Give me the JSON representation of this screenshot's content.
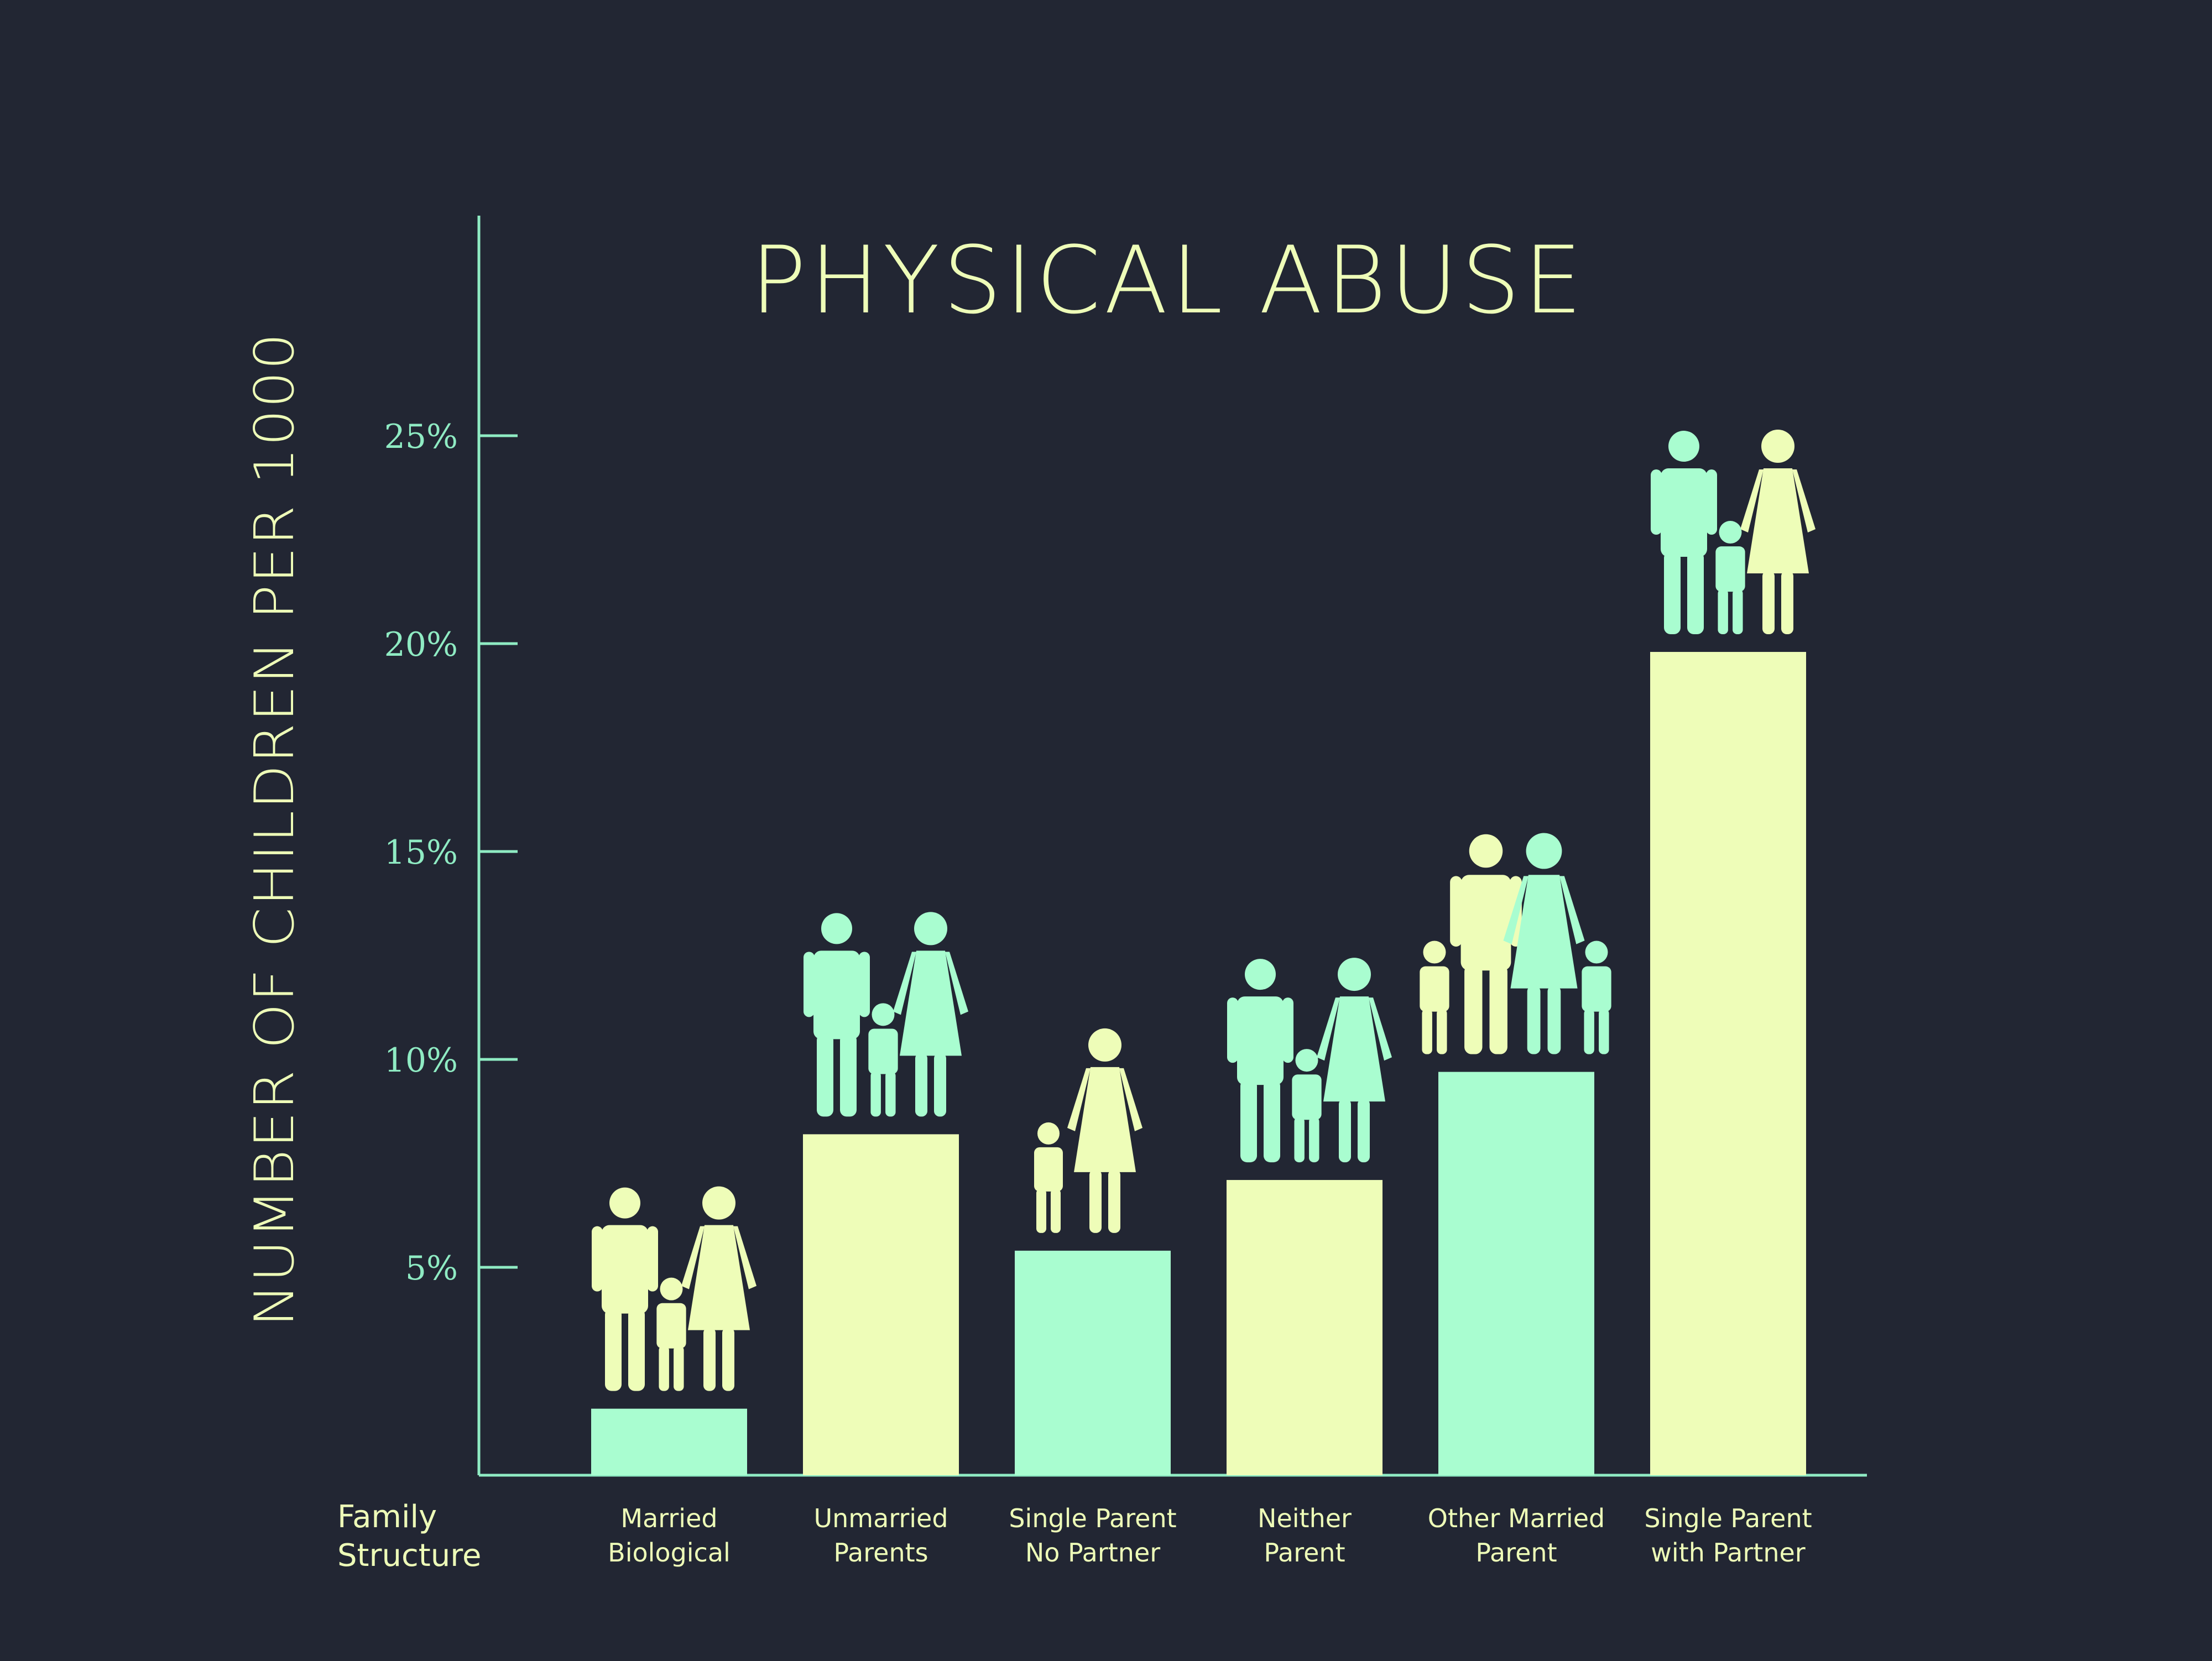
{
  "colors": {
    "background": "#222633",
    "cream": "#EEFDB8",
    "mint": "#A9FDD0",
    "axis": "#8FEBC3"
  },
  "chart_data": {
    "type": "bar",
    "title": "PHYSICAL ABUSE",
    "ylabel": "NUMBER OF CHILDREN PER 1000",
    "xlabel": [
      "Family",
      "Structure"
    ],
    "ylim": [
      0,
      30
    ],
    "yticks": [
      5,
      10,
      15,
      20,
      25
    ],
    "ytick_labels": [
      "5%",
      "10%",
      "15%",
      "20%",
      "25%"
    ],
    "grid": false,
    "categories": [
      [
        "Married",
        "Biological"
      ],
      [
        "Unmarried",
        "Parents"
      ],
      [
        "Single Parent",
        "No Partner"
      ],
      [
        "Neither",
        "Parent"
      ],
      [
        "Other Married",
        "Parent"
      ],
      [
        "Single Parent",
        "with Partner"
      ]
    ],
    "values": [
      1.6,
      8.2,
      5.4,
      7.1,
      9.7,
      19.8
    ],
    "bar_colors": [
      "mint",
      "cream",
      "mint",
      "cream",
      "mint",
      "cream"
    ],
    "icons": [
      "father-mother-child-icon",
      "father-mother-child-icon",
      "mother-child-icon",
      "father-mother-child-icon",
      "stepfamily-two-children-icon",
      "father-mother-child-icon"
    ]
  }
}
